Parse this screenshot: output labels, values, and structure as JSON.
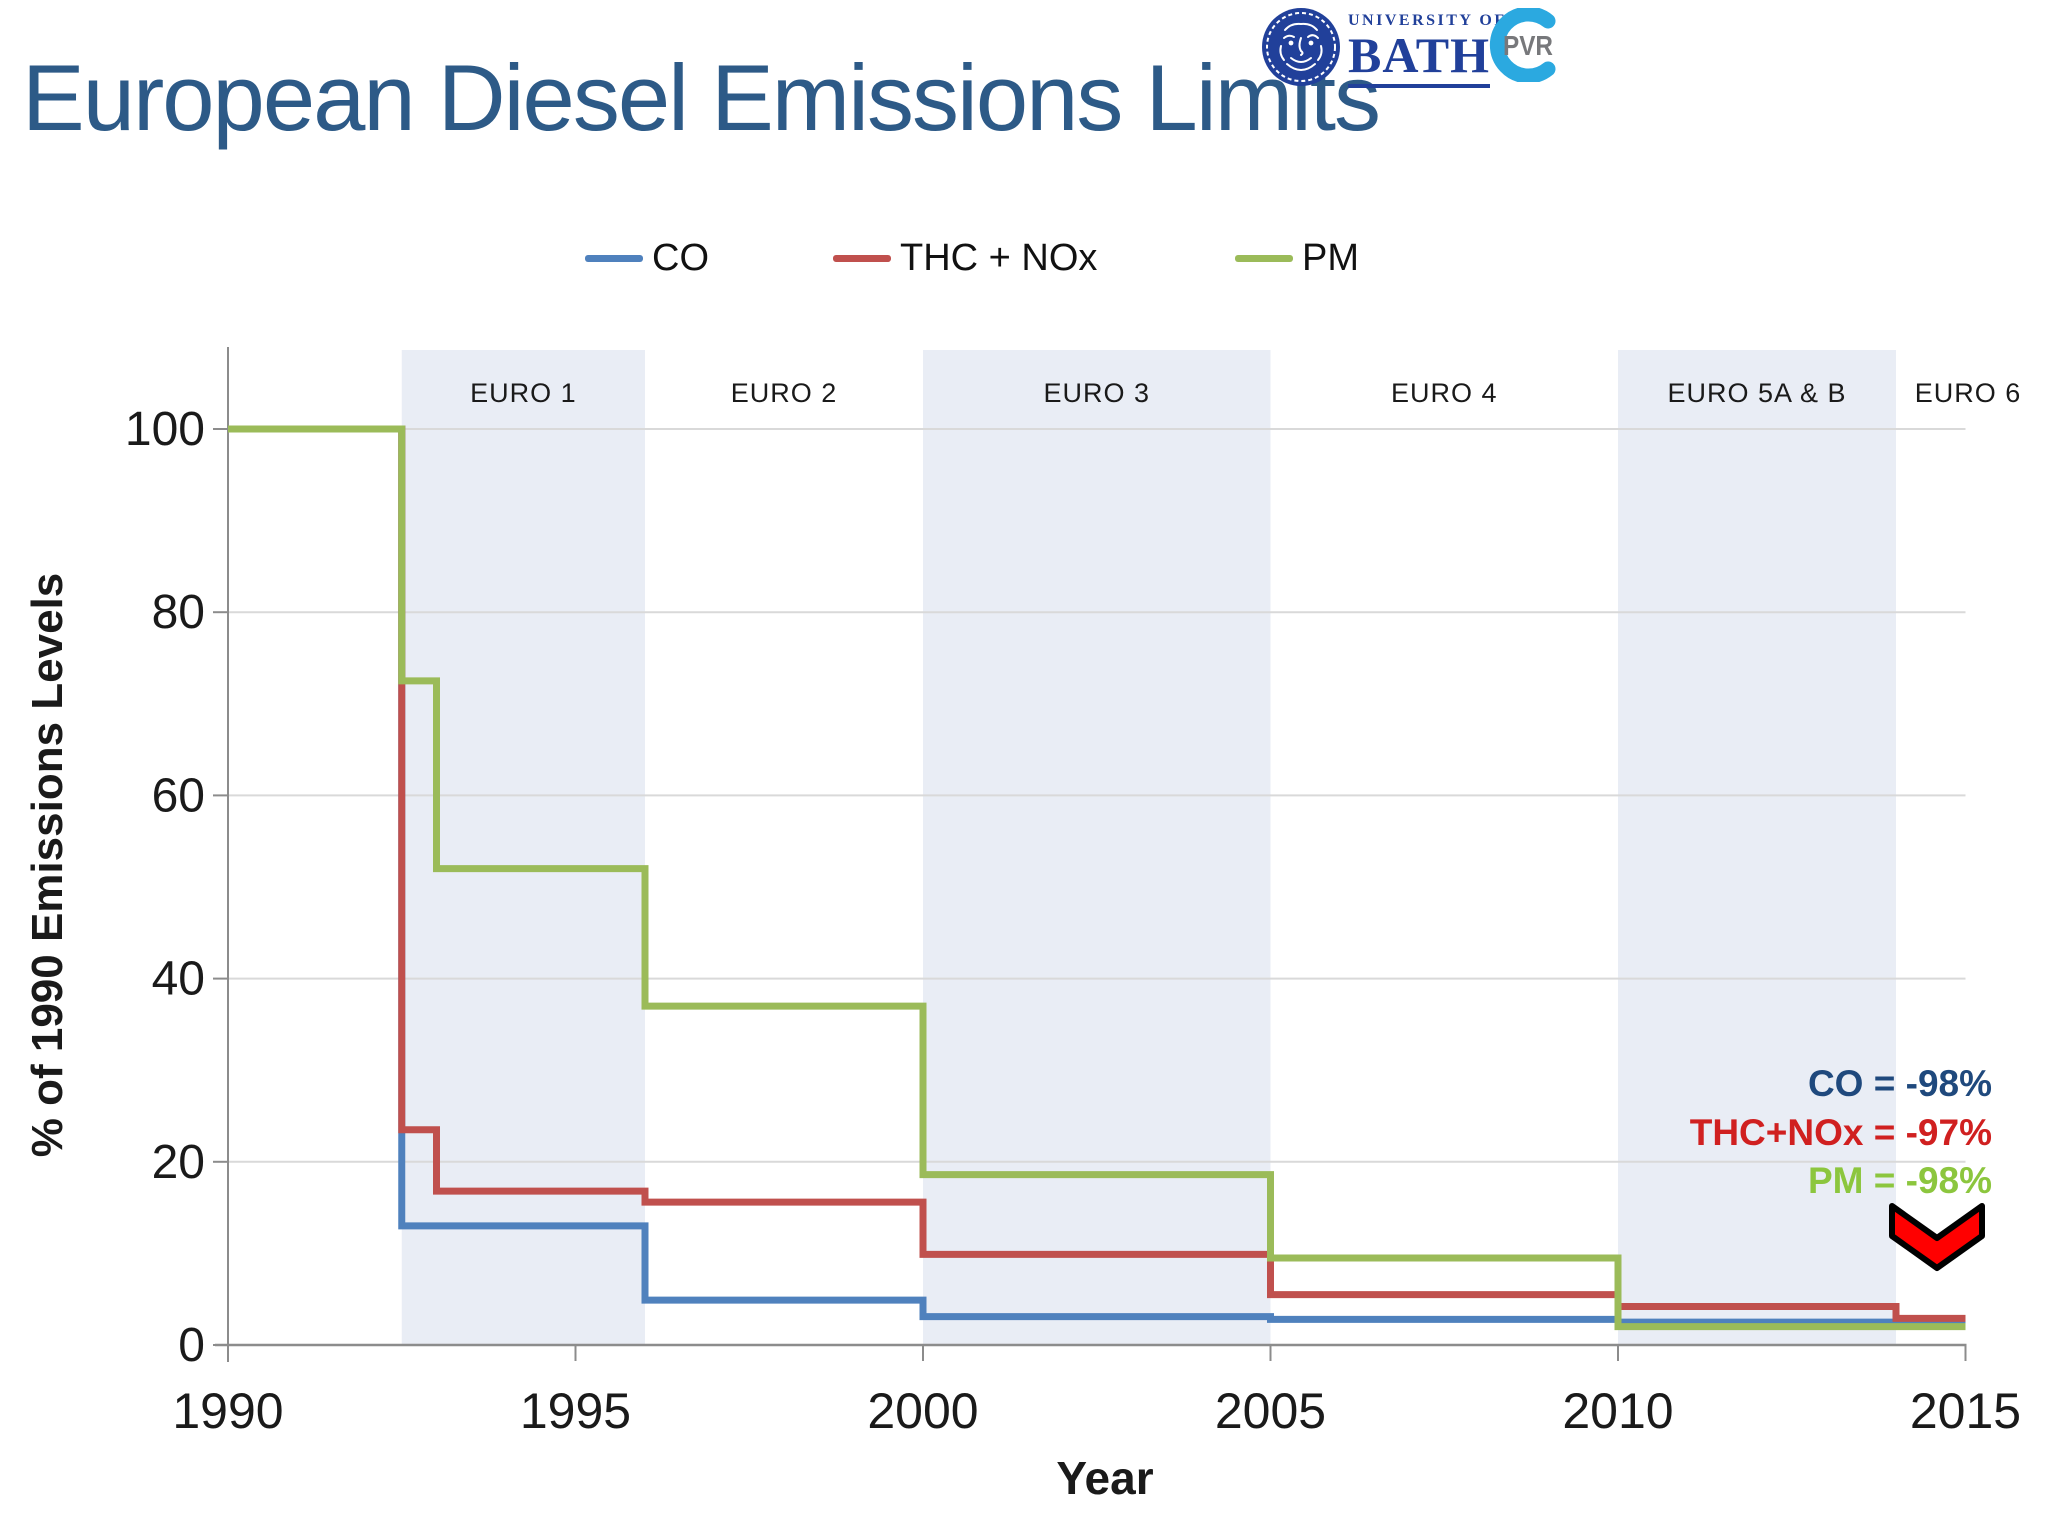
{
  "header": {
    "title": "European Diesel Emissions Limits",
    "bath_logo": {
      "line1": "UNIVERSITY OF",
      "line2": "BATH"
    },
    "pvr_logo": {
      "text": "PVR"
    }
  },
  "chart_data": {
    "type": "line",
    "subtype": "step-after",
    "title": "European Diesel Emissions Limits",
    "xlabel": "Year",
    "ylabel": "% of 1990 Emissions Levels",
    "xlim": [
      1990,
      2015
    ],
    "ylim": [
      0,
      100
    ],
    "x_ticks": [
      "1990",
      "1995",
      "2000",
      "2005",
      "2010",
      "2015"
    ],
    "y_ticks": [
      "0",
      "20",
      "40",
      "60",
      "80",
      "100"
    ],
    "grid": true,
    "legend_position": "top",
    "band_fill_color": "#E9EDF5",
    "bands": [
      {
        "label": "EURO 1",
        "start": 1992.5,
        "end": 1996,
        "shaded": true
      },
      {
        "label": "EURO 2",
        "start": 1996,
        "end": 2000,
        "shaded": false
      },
      {
        "label": "EURO 3",
        "start": 2000,
        "end": 2005,
        "shaded": true
      },
      {
        "label": "EURO 4",
        "start": 2005,
        "end": 2010,
        "shaded": false
      },
      {
        "label": "EURO 5A & B",
        "start": 2010,
        "end": 2014,
        "shaded": true
      },
      {
        "label": "EURO 6",
        "start": 2014,
        "end": 2017.1,
        "shaded": false
      }
    ],
    "series": [
      {
        "name": "CO",
        "color": "#4F81BD",
        "end_year": 2015,
        "steps": [
          [
            1990,
            100
          ],
          [
            1992.5,
            13
          ],
          [
            1996,
            4.9
          ],
          [
            2000,
            3.1
          ],
          [
            2005,
            2.8
          ],
          [
            2010,
            2.5
          ]
        ]
      },
      {
        "name": "THC + NOx",
        "color": "#C0504D",
        "end_year": 2015,
        "steps": [
          [
            1990,
            100
          ],
          [
            1992.5,
            23.5
          ],
          [
            1993,
            16.8
          ],
          [
            1996,
            15.6
          ],
          [
            2000,
            9.9
          ],
          [
            2005,
            5.5
          ],
          [
            2010,
            4.2
          ],
          [
            2014,
            2.9
          ]
        ]
      },
      {
        "name": "PM",
        "color": "#9BBB59",
        "end_year": 2015,
        "steps": [
          [
            1990,
            100
          ],
          [
            1992.5,
            72.5
          ],
          [
            1993,
            52
          ],
          [
            1996,
            37
          ],
          [
            2000,
            18.6
          ],
          [
            2005,
            9.5
          ],
          [
            2010,
            2.0
          ]
        ]
      }
    ],
    "annotations": [
      {
        "text": "CO = -98%",
        "color": "#1F497D"
      },
      {
        "text": "THC+NOx = -97%",
        "color": "#D02020"
      },
      {
        "text": "PM = -98%",
        "color": "#8CC63E"
      }
    ],
    "arrow": {
      "shape": "down-chevron",
      "fill": "#FF0000",
      "outline": "#000000"
    }
  }
}
